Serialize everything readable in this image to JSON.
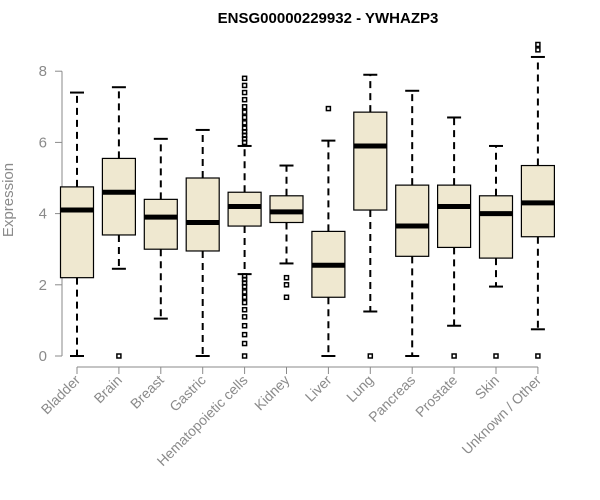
{
  "chart_data": {
    "type": "boxplot",
    "title": "ENSG00000229932 - YWHAZP3",
    "xlabel": "",
    "ylabel": "Expression",
    "ylim": [
      0,
      8.8
    ],
    "yticks": [
      0,
      2,
      4,
      6,
      8
    ],
    "categories": [
      "Bladder",
      "Brain",
      "Breast",
      "Gastric",
      "Hematopoietic cells",
      "Kidney",
      "Liver",
      "Lung",
      "Pancreas",
      "Prostate",
      "Skin",
      "Unknown / Other"
    ],
    "box_fill": "#efe8d0",
    "boxes": [
      {
        "name": "Bladder",
        "whisker_low": 0.0,
        "q1": 2.2,
        "median": 4.1,
        "q3": 4.75,
        "whisker_high": 7.4,
        "outliers": []
      },
      {
        "name": "Brain",
        "whisker_low": 2.45,
        "q1": 3.4,
        "median": 4.6,
        "q3": 5.55,
        "whisker_high": 7.55,
        "outliers": [
          0.0
        ]
      },
      {
        "name": "Breast",
        "whisker_low": 1.05,
        "q1": 3.0,
        "median": 3.9,
        "q3": 4.4,
        "whisker_high": 6.1,
        "outliers": []
      },
      {
        "name": "Gastric",
        "whisker_low": 0.0,
        "q1": 2.95,
        "median": 3.75,
        "q3": 5.0,
        "whisker_high": 6.35,
        "outliers": []
      },
      {
        "name": "Hematopoietic cells",
        "whisker_low": 2.3,
        "q1": 3.65,
        "median": 4.2,
        "q3": 4.6,
        "whisker_high": 5.9,
        "outliers": [
          0.0,
          0.35,
          0.6,
          0.85,
          1.1,
          1.3,
          1.5,
          1.65,
          1.8,
          1.95,
          2.05,
          2.15,
          2.25,
          6.0,
          6.1,
          6.2,
          6.3,
          6.4,
          6.55,
          6.7,
          6.85,
          7.0,
          7.2,
          7.4,
          7.6,
          7.8
        ]
      },
      {
        "name": "Kidney",
        "whisker_low": 2.6,
        "q1": 3.75,
        "median": 4.05,
        "q3": 4.5,
        "whisker_high": 5.35,
        "outliers": [
          1.65,
          2.0,
          2.2
        ]
      },
      {
        "name": "Liver",
        "whisker_low": 0.0,
        "q1": 1.65,
        "median": 2.55,
        "q3": 3.5,
        "whisker_high": 6.05,
        "outliers": [
          6.95
        ]
      },
      {
        "name": "Lung",
        "whisker_low": 1.25,
        "q1": 4.1,
        "median": 5.9,
        "q3": 6.85,
        "whisker_high": 7.9,
        "outliers": [
          0.0
        ]
      },
      {
        "name": "Pancreas",
        "whisker_low": 0.0,
        "q1": 2.8,
        "median": 3.65,
        "q3": 4.8,
        "whisker_high": 7.45,
        "outliers": []
      },
      {
        "name": "Prostate",
        "whisker_low": 0.85,
        "q1": 3.05,
        "median": 4.2,
        "q3": 4.8,
        "whisker_high": 6.7,
        "outliers": [
          0.0
        ]
      },
      {
        "name": "Skin",
        "whisker_low": 1.95,
        "q1": 2.75,
        "median": 4.0,
        "q3": 4.5,
        "whisker_high": 5.9,
        "outliers": [
          0.0
        ]
      },
      {
        "name": "Unknown / Other",
        "whisker_low": 0.75,
        "q1": 3.35,
        "median": 4.3,
        "q3": 5.35,
        "whisker_high": 8.4,
        "outliers": [
          0.0,
          8.6,
          8.75
        ]
      }
    ]
  }
}
